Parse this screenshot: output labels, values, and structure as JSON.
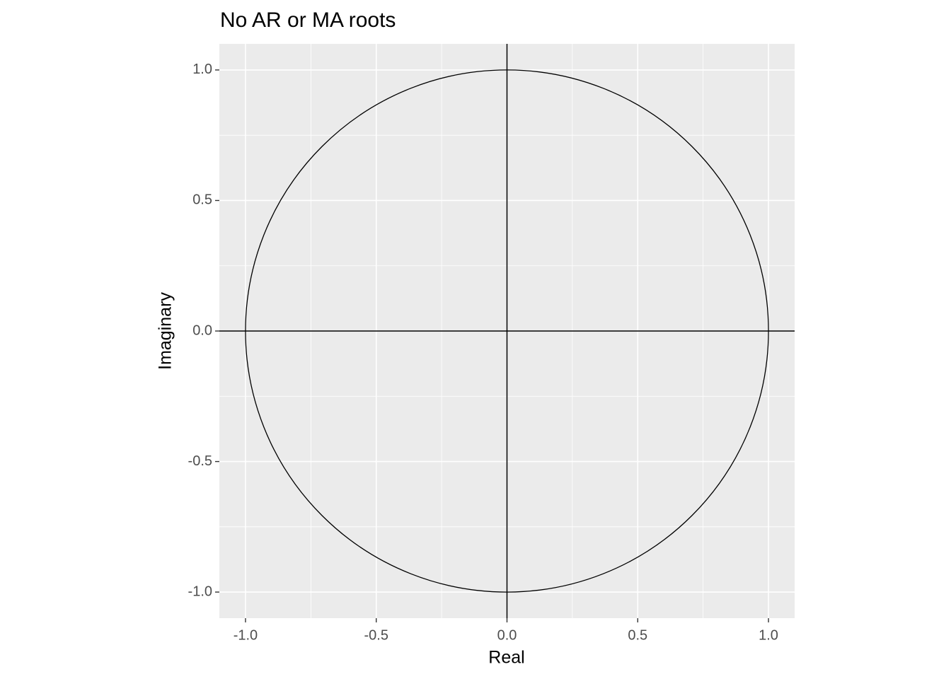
{
  "chart_data": {
    "type": "scatter",
    "title": "No AR or MA roots",
    "x_label": "Real",
    "y_label": "Imaginary",
    "xlim": [
      -1.1,
      1.1
    ],
    "ylim": [
      -1.1,
      1.1
    ],
    "xticks": [
      {
        "value": -1,
        "label": "-1.0"
      },
      -0.5,
      {
        "value": 0,
        "label": "0.0"
      },
      0.5,
      {
        "value": 1,
        "label": "1.0"
      }
    ],
    "yticks": [
      {
        "value": -1,
        "label": "-1.0"
      },
      -0.5,
      {
        "value": 0,
        "label": "0.0"
      },
      0.5,
      {
        "value": 1,
        "label": "1.0"
      }
    ],
    "grid": true
  }
}
